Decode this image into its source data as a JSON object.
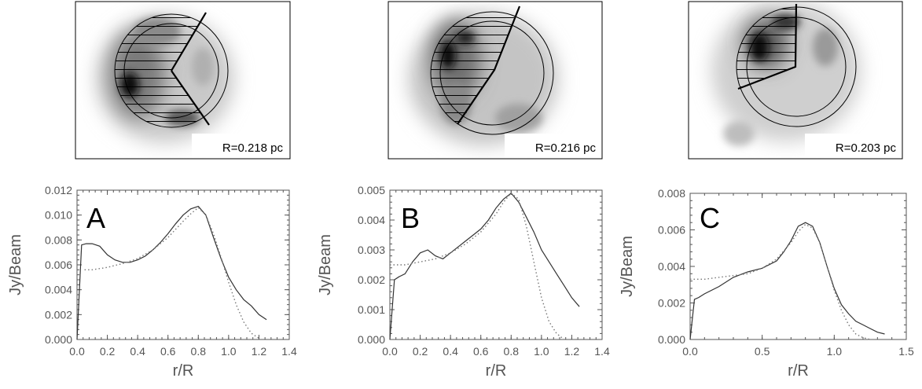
{
  "chart_data": [
    {
      "type": "line",
      "panel_letter": "A",
      "radius_label": "R=0.218 pc",
      "xlabel": "r/R",
      "ylabel": "Jy/Beam",
      "xlim": [
        0.0,
        1.4
      ],
      "ylim": [
        0.0,
        0.012
      ],
      "x_ticks": [
        "0.0",
        "0.2",
        "0.4",
        "0.6",
        "0.8",
        "1.0",
        "1.2",
        "1.4"
      ],
      "y_ticks": [
        "0.000",
        "0.002",
        "0.004",
        "0.006",
        "0.008",
        "0.010",
        "0.012"
      ],
      "series": [
        {
          "style": "solid",
          "x": [
            0.0,
            0.03,
            0.06,
            0.1,
            0.15,
            0.2,
            0.25,
            0.3,
            0.35,
            0.4,
            0.45,
            0.5,
            0.55,
            0.6,
            0.65,
            0.7,
            0.75,
            0.8,
            0.85,
            0.9,
            0.95,
            1.0,
            1.05,
            1.1,
            1.15,
            1.2,
            1.25
          ],
          "y": [
            0.0,
            0.0076,
            0.0077,
            0.0077,
            0.0075,
            0.0068,
            0.0064,
            0.0062,
            0.0062,
            0.0064,
            0.0067,
            0.0072,
            0.0078,
            0.0085,
            0.0093,
            0.01,
            0.0105,
            0.0107,
            0.01,
            0.0082,
            0.0065,
            0.005,
            0.004,
            0.0032,
            0.0027,
            0.002,
            0.0016
          ]
        },
        {
          "style": "dotted",
          "x": [
            0.05,
            0.1,
            0.2,
            0.3,
            0.4,
            0.5,
            0.6,
            0.7,
            0.75,
            0.8,
            0.85,
            0.9,
            0.95,
            1.0,
            1.05,
            1.1,
            1.15,
            1.2
          ],
          "y": [
            0.0056,
            0.0056,
            0.0058,
            0.0061,
            0.0065,
            0.0072,
            0.0082,
            0.0095,
            0.0101,
            0.0106,
            0.01,
            0.0085,
            0.0066,
            0.0046,
            0.0028,
            0.0014,
            0.0005,
            0.0001
          ]
        }
      ]
    },
    {
      "type": "line",
      "panel_letter": "B",
      "radius_label": "R=0.216 pc",
      "xlabel": "r/R",
      "ylabel": "Jy/Beam",
      "xlim": [
        0.0,
        1.4
      ],
      "ylim": [
        0.0,
        0.005
      ],
      "x_ticks": [
        "0.0",
        "0.2",
        "0.4",
        "0.6",
        "0.8",
        "1.0",
        "1.2",
        "1.4"
      ],
      "y_ticks": [
        "0.000",
        "0.001",
        "0.002",
        "0.003",
        "0.004",
        "0.005"
      ],
      "series": [
        {
          "style": "solid",
          "x": [
            0.0,
            0.03,
            0.06,
            0.1,
            0.15,
            0.2,
            0.25,
            0.3,
            0.35,
            0.4,
            0.45,
            0.5,
            0.55,
            0.6,
            0.65,
            0.7,
            0.75,
            0.8,
            0.85,
            0.9,
            0.95,
            1.0,
            1.05,
            1.1,
            1.15,
            1.2,
            1.25
          ],
          "y": [
            0.0,
            0.002,
            0.0021,
            0.0022,
            0.0026,
            0.0029,
            0.003,
            0.0028,
            0.0027,
            0.0029,
            0.0031,
            0.0033,
            0.0035,
            0.0037,
            0.004,
            0.0044,
            0.0047,
            0.0049,
            0.0046,
            0.0041,
            0.0036,
            0.003,
            0.0026,
            0.0022,
            0.0018,
            0.0014,
            0.0011
          ]
        },
        {
          "style": "dotted",
          "x": [
            0.0,
            0.1,
            0.2,
            0.3,
            0.4,
            0.5,
            0.6,
            0.7,
            0.75,
            0.8,
            0.85,
            0.9,
            0.95,
            1.0,
            1.05,
            1.1,
            1.15
          ],
          "y": [
            0.0025,
            0.0025,
            0.0026,
            0.0027,
            0.0029,
            0.0032,
            0.0036,
            0.0042,
            0.0046,
            0.0049,
            0.0047,
            0.0038,
            0.0026,
            0.0014,
            0.0006,
            0.0002,
            0.0
          ]
        }
      ]
    },
    {
      "type": "line",
      "panel_letter": "C",
      "radius_label": "R=0.203 pc",
      "xlabel": "r/R",
      "ylabel": "Jy/Beam",
      "xlim": [
        0.0,
        1.5
      ],
      "ylim": [
        0.0,
        0.008
      ],
      "x_ticks": [
        "0.0",
        "0.5",
        "1.0",
        "1.5"
      ],
      "y_ticks": [
        "0.000",
        "0.002",
        "0.004",
        "0.006",
        "0.008"
      ],
      "series": [
        {
          "style": "solid",
          "x": [
            0.0,
            0.03,
            0.06,
            0.1,
            0.2,
            0.3,
            0.4,
            0.5,
            0.6,
            0.65,
            0.7,
            0.75,
            0.8,
            0.85,
            0.9,
            0.95,
            1.0,
            1.05,
            1.1,
            1.15,
            1.2,
            1.25,
            1.3,
            1.35
          ],
          "y": [
            0.0,
            0.0022,
            0.0023,
            0.0025,
            0.0029,
            0.0034,
            0.0037,
            0.0039,
            0.0043,
            0.0048,
            0.0054,
            0.0062,
            0.0064,
            0.0062,
            0.0053,
            0.004,
            0.0028,
            0.0019,
            0.0014,
            0.001,
            0.0008,
            0.0006,
            0.0004,
            0.0003
          ]
        },
        {
          "style": "dotted",
          "x": [
            0.0,
            0.1,
            0.2,
            0.3,
            0.4,
            0.5,
            0.6,
            0.7,
            0.75,
            0.8,
            0.85,
            0.9,
            0.95,
            1.0,
            1.05,
            1.1,
            1.15,
            1.2,
            1.25
          ],
          "y": [
            0.0033,
            0.0033,
            0.0034,
            0.0035,
            0.0036,
            0.0039,
            0.0044,
            0.0053,
            0.0059,
            0.0063,
            0.0061,
            0.0053,
            0.004,
            0.0027,
            0.0016,
            0.0008,
            0.0003,
            0.0001,
            0.0
          ]
        }
      ]
    }
  ]
}
